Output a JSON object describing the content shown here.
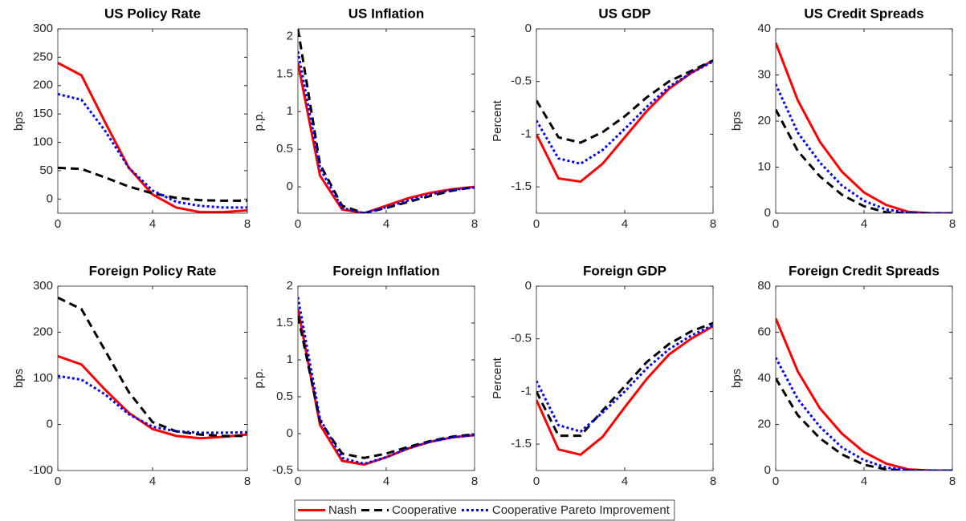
{
  "chart_data": [
    {
      "type": "line",
      "title": "US Policy Rate",
      "y_label": "bps",
      "x": [
        0,
        1,
        2,
        3,
        4,
        5,
        6,
        7,
        8
      ],
      "xlim": [
        0,
        8
      ],
      "xticks": [
        0,
        4,
        8
      ],
      "ylim": [
        -25,
        300
      ],
      "yticks": [
        0,
        50,
        100,
        150,
        200,
        250,
        300
      ],
      "series": [
        {
          "name": "Nash",
          "color": "#ff0000",
          "style": "solid",
          "values": [
            240,
            218,
            135,
            55,
            8,
            -15,
            -23,
            -23,
            -20
          ]
        },
        {
          "name": "Cooperative",
          "color": "#000000",
          "style": "dashed",
          "values": [
            55,
            53,
            38,
            22,
            10,
            2,
            -2,
            -3,
            -3
          ]
        },
        {
          "name": "Cooperative Pareto Improvement",
          "color": "#0000ff",
          "style": "dotted",
          "values": [
            185,
            175,
            120,
            55,
            15,
            -5,
            -12,
            -15,
            -15
          ]
        }
      ]
    },
    {
      "type": "line",
      "title": "US Inflation",
      "y_label": "p.p.",
      "x": [
        0,
        1,
        2,
        3,
        4,
        5,
        6,
        7,
        8
      ],
      "xlim": [
        0,
        8
      ],
      "xticks": [
        0,
        4,
        8
      ],
      "ylim": [
        -0.35,
        2.1
      ],
      "yticks": [
        0,
        0.5,
        1,
        1.5,
        2
      ],
      "series": [
        {
          "name": "Nash",
          "color": "#ff0000",
          "style": "solid",
          "values": [
            1.65,
            0.15,
            -0.3,
            -0.35,
            -0.25,
            -0.15,
            -0.08,
            -0.03,
            0
          ]
        },
        {
          "name": "Cooperative",
          "color": "#000000",
          "style": "dashed",
          "values": [
            2.1,
            0.3,
            -0.25,
            -0.35,
            -0.28,
            -0.2,
            -0.12,
            -0.05,
            0
          ]
        },
        {
          "name": "Cooperative Pareto Improvement",
          "color": "#0000ff",
          "style": "dotted",
          "values": [
            1.8,
            0.25,
            -0.28,
            -0.35,
            -0.27,
            -0.18,
            -0.1,
            -0.04,
            -0.01
          ]
        }
      ]
    },
    {
      "type": "line",
      "title": "US GDP",
      "y_label": "Percent",
      "x": [
        0,
        1,
        2,
        3,
        4,
        5,
        6,
        7,
        8
      ],
      "xlim": [
        0,
        8
      ],
      "xticks": [
        0,
        4,
        8
      ],
      "ylim": [
        -1.75,
        0
      ],
      "yticks": [
        -1.5,
        -1,
        -0.5,
        0
      ],
      "series": [
        {
          "name": "Nash",
          "color": "#ff0000",
          "style": "solid",
          "values": [
            -1.0,
            -1.42,
            -1.45,
            -1.28,
            -1.03,
            -0.78,
            -0.57,
            -0.42,
            -0.3
          ]
        },
        {
          "name": "Cooperative",
          "color": "#000000",
          "style": "dashed",
          "values": [
            -0.68,
            -1.03,
            -1.08,
            -0.98,
            -0.83,
            -0.65,
            -0.5,
            -0.4,
            -0.3
          ]
        },
        {
          "name": "Cooperative Pareto Improvement",
          "color": "#0000ff",
          "style": "dotted",
          "values": [
            -0.87,
            -1.23,
            -1.28,
            -1.15,
            -0.95,
            -0.74,
            -0.55,
            -0.42,
            -0.31
          ]
        }
      ]
    },
    {
      "type": "line",
      "title": "US Credit Spreads",
      "y_label": "bps",
      "x": [
        0,
        1,
        2,
        3,
        4,
        5,
        6,
        7,
        8
      ],
      "xlim": [
        0,
        8
      ],
      "xticks": [
        0,
        4,
        8
      ],
      "ylim": [
        0,
        40
      ],
      "yticks": [
        0,
        10,
        20,
        30,
        40
      ],
      "series": [
        {
          "name": "Nash",
          "color": "#ff0000",
          "style": "solid",
          "values": [
            37,
            24.5,
            15.5,
            9,
            4.5,
            1.8,
            0.3,
            0,
            0
          ]
        },
        {
          "name": "Cooperative",
          "color": "#000000",
          "style": "dashed",
          "values": [
            22.5,
            13.5,
            8,
            4,
            1.5,
            0.2,
            0,
            0,
            0
          ]
        },
        {
          "name": "Cooperative Pareto Improvement",
          "color": "#0000ff",
          "style": "dotted",
          "values": [
            28,
            17.5,
            11,
            6,
            2.7,
            0.8,
            0.1,
            0,
            0
          ]
        }
      ]
    },
    {
      "type": "line",
      "title": "Foreign Policy Rate",
      "y_label": "bps",
      "x": [
        0,
        1,
        2,
        3,
        4,
        5,
        6,
        7,
        8
      ],
      "xlim": [
        0,
        8
      ],
      "xticks": [
        0,
        4,
        8
      ],
      "ylim": [
        -100,
        300
      ],
      "yticks": [
        -100,
        0,
        100,
        200,
        300
      ],
      "series": [
        {
          "name": "Nash",
          "color": "#ff0000",
          "style": "solid",
          "values": [
            148,
            130,
            75,
            25,
            -10,
            -25,
            -30,
            -27,
            -22
          ]
        },
        {
          "name": "Cooperative",
          "color": "#000000",
          "style": "dashed",
          "values": [
            275,
            250,
            160,
            70,
            5,
            -15,
            -22,
            -25,
            -25
          ]
        },
        {
          "name": "Cooperative Pareto Improvement",
          "color": "#0000ff",
          "style": "dotted",
          "values": [
            105,
            97,
            65,
            22,
            -5,
            -15,
            -18,
            -18,
            -17
          ]
        }
      ]
    },
    {
      "type": "line",
      "title": "Foreign Inflation",
      "y_label": "p.p.",
      "x": [
        0,
        1,
        2,
        3,
        4,
        5,
        6,
        7,
        8
      ],
      "xlim": [
        0,
        8
      ],
      "xticks": [
        0,
        4,
        8
      ],
      "ylim": [
        -0.5,
        2
      ],
      "yticks": [
        -0.5,
        0,
        0.5,
        1,
        1.5,
        2
      ],
      "series": [
        {
          "name": "Nash",
          "color": "#ff0000",
          "style": "solid",
          "values": [
            1.7,
            0.12,
            -0.37,
            -0.42,
            -0.32,
            -0.2,
            -0.11,
            -0.05,
            -0.02
          ]
        },
        {
          "name": "Cooperative",
          "color": "#000000",
          "style": "dashed",
          "values": [
            1.6,
            0.17,
            -0.27,
            -0.33,
            -0.27,
            -0.18,
            -0.1,
            -0.04,
            -0.01
          ]
        },
        {
          "name": "Cooperative Pareto Improvement",
          "color": "#0000ff",
          "style": "dotted",
          "values": [
            1.85,
            0.2,
            -0.33,
            -0.41,
            -0.32,
            -0.2,
            -0.11,
            -0.05,
            -0.02
          ]
        }
      ]
    },
    {
      "type": "line",
      "title": "Foreign GDP",
      "y_label": "Percent",
      "x": [
        0,
        1,
        2,
        3,
        4,
        5,
        6,
        7,
        8
      ],
      "xlim": [
        0,
        8
      ],
      "xticks": [
        0,
        4,
        8
      ],
      "ylim": [
        -1.75,
        0
      ],
      "yticks": [
        -1.5,
        -1,
        -0.5,
        0
      ],
      "series": [
        {
          "name": "Nash",
          "color": "#ff0000",
          "style": "solid",
          "values": [
            -1.08,
            -1.55,
            -1.6,
            -1.43,
            -1.15,
            -0.88,
            -0.65,
            -0.5,
            -0.38
          ]
        },
        {
          "name": "Cooperative",
          "color": "#000000",
          "style": "dashed",
          "values": [
            -1.0,
            -1.42,
            -1.42,
            -1.18,
            -0.95,
            -0.72,
            -0.55,
            -0.43,
            -0.35
          ]
        },
        {
          "name": "Cooperative Pareto Improvement",
          "color": "#0000ff",
          "style": "dotted",
          "values": [
            -0.9,
            -1.32,
            -1.38,
            -1.2,
            -1.0,
            -0.78,
            -0.6,
            -0.47,
            -0.37
          ]
        }
      ]
    },
    {
      "type": "line",
      "title": "Foreign Credit Spreads",
      "y_label": "bps",
      "x": [
        0,
        1,
        2,
        3,
        4,
        5,
        6,
        7,
        8
      ],
      "xlim": [
        0,
        8
      ],
      "xticks": [
        0,
        4,
        8
      ],
      "ylim": [
        0,
        80
      ],
      "yticks": [
        0,
        20,
        40,
        60,
        80
      ],
      "series": [
        {
          "name": "Nash",
          "color": "#ff0000",
          "style": "solid",
          "values": [
            66,
            43,
            27,
            16,
            8,
            3,
            0.5,
            0,
            0
          ]
        },
        {
          "name": "Cooperative",
          "color": "#000000",
          "style": "dashed",
          "values": [
            40,
            24,
            14,
            7,
            2.5,
            0.5,
            0,
            0,
            0
          ]
        },
        {
          "name": "Cooperative Pareto Improvement",
          "color": "#0000ff",
          "style": "dotted",
          "values": [
            49,
            31,
            19,
            10,
            4.5,
            1.3,
            0.2,
            0,
            0
          ]
        }
      ]
    }
  ]
}
